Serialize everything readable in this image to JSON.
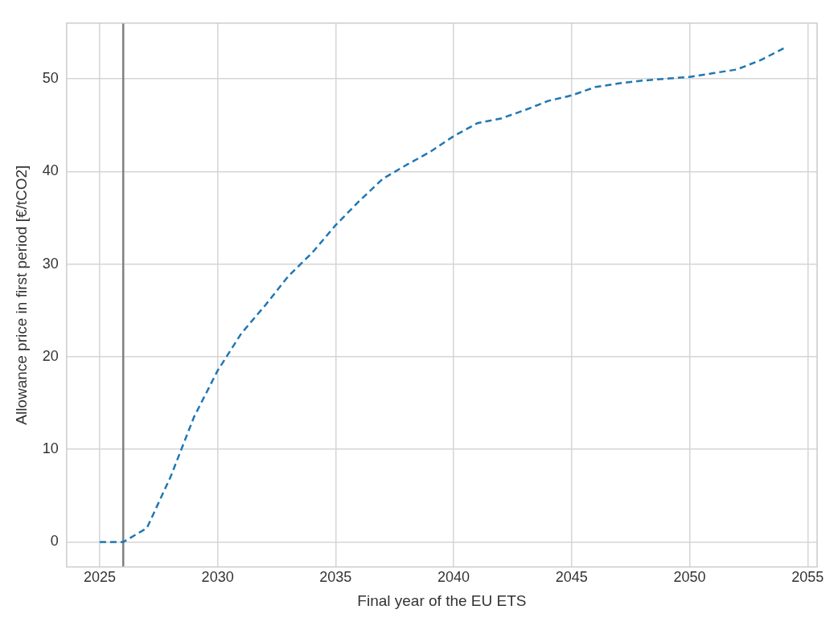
{
  "chart_data": {
    "type": "line",
    "xlabel": "Final year of the EU ETS",
    "ylabel": "Allowance price in first period [€/tCO2]",
    "x": [
      2025,
      2026,
      2027,
      2028,
      2029,
      2030,
      2031,
      2032,
      2033,
      2034,
      2035,
      2036,
      2037,
      2038,
      2039,
      2040,
      2041,
      2042,
      2043,
      2044,
      2045,
      2046,
      2047,
      2048,
      2049,
      2050,
      2051,
      2052,
      2053,
      2054
    ],
    "series": [
      {
        "color": "#1f77b4",
        "line_style": "dashed",
        "values": [
          0,
          0,
          1.5,
          7,
          13.5,
          18.5,
          22.5,
          25.5,
          28.7,
          31.2,
          34.2,
          36.8,
          39.2,
          40.7,
          42.1,
          43.8,
          45.2,
          45.7,
          46.6,
          47.6,
          48.2,
          49.1,
          49.5,
          49.8,
          50.0,
          50.2,
          50.6,
          51.0,
          52.0,
          53.3
        ]
      }
    ],
    "xlim": [
      2023.6,
      2055.4
    ],
    "xticks": [
      2025,
      2030,
      2035,
      2040,
      2045,
      2050,
      2055
    ],
    "ylim": [
      -2.7,
      56
    ],
    "yticks": [
      0,
      10,
      20,
      30,
      40,
      50
    ],
    "ref_lines": [
      {
        "axis": "x",
        "value": 2026,
        "color": "#808080"
      }
    ],
    "grid": true,
    "legend": false,
    "marker": "none"
  }
}
